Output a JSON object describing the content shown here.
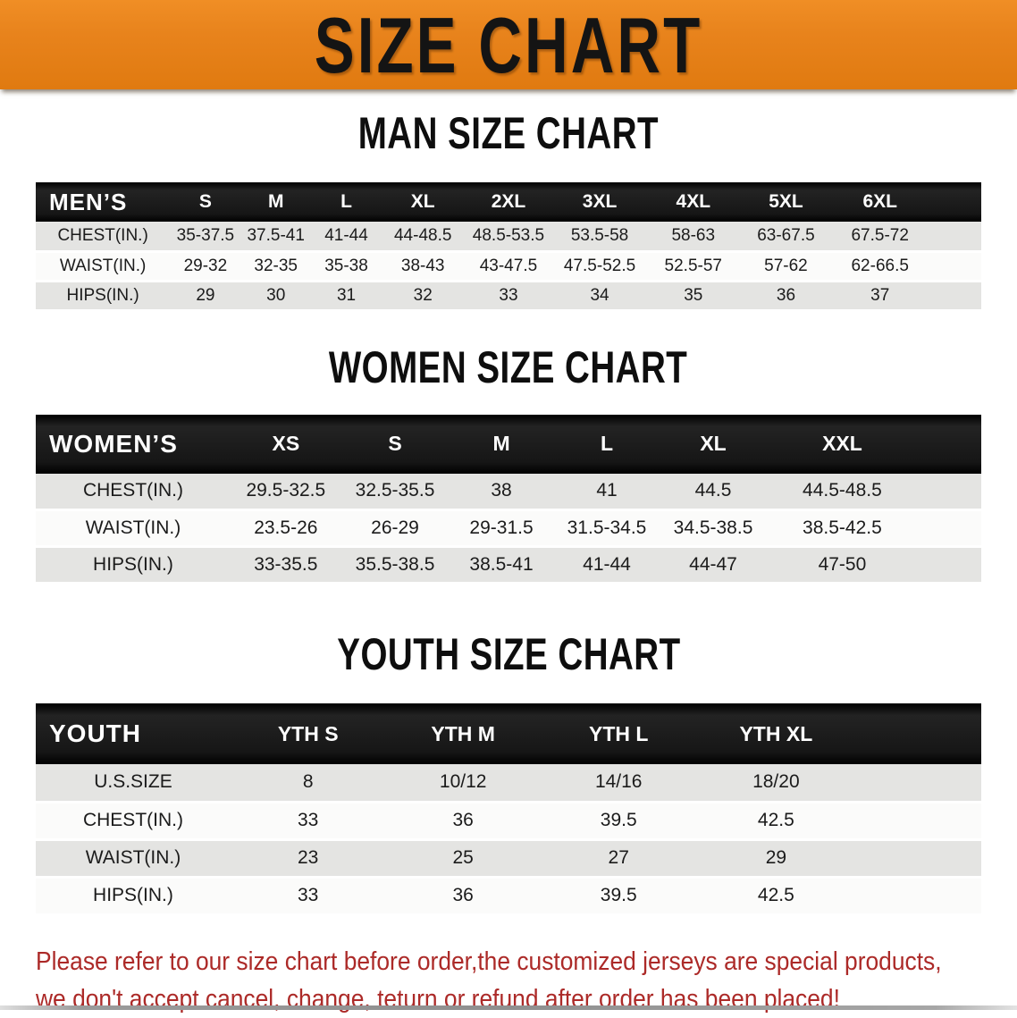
{
  "banner": {
    "title": "SIZE CHART"
  },
  "colors": {
    "banner_bg": "#E8831C",
    "header_bar_bg": "#161616",
    "row_stripe": "#E4E4E2",
    "footer_text": "#AC2A28"
  },
  "sections": [
    {
      "heading": "MAN SIZE CHART",
      "header_label": "MEN’S",
      "columns": [
        "S",
        "M",
        "L",
        "XL",
        "2XL",
        "3XL",
        "4XL",
        "5XL",
        "6XL"
      ],
      "rows": [
        {
          "label": "CHEST(IN.)",
          "values": [
            "35-37.5",
            "37.5-41",
            "41-44",
            "44-48.5",
            "48.5-53.5",
            "53.5-58",
            "58-63",
            "63-67.5",
            "67.5-72"
          ]
        },
        {
          "label": "WAIST(IN.)",
          "values": [
            "29-32",
            "32-35",
            "35-38",
            "38-43",
            "43-47.5",
            "47.5-52.5",
            "52.5-57",
            "57-62",
            "62-66.5"
          ]
        },
        {
          "label": "HIPS(IN.)",
          "values": [
            "29",
            "30",
            "31",
            "32",
            "33",
            "34",
            "35",
            "36",
            "37"
          ]
        }
      ]
    },
    {
      "heading": "WOMEN SIZE CHART",
      "header_label": "WOMEN’S",
      "columns": [
        "XS",
        "S",
        "M",
        "L",
        "XL",
        "XXL"
      ],
      "rows": [
        {
          "label": "CHEST(IN.)",
          "values": [
            "29.5-32.5",
            "32.5-35.5",
            "38",
            "41",
            "44.5",
            "44.5-48.5"
          ]
        },
        {
          "label": "WAIST(IN.)",
          "values": [
            "23.5-26",
            "26-29",
            "29-31.5",
            "31.5-34.5",
            "34.5-38.5",
            "38.5-42.5"
          ]
        },
        {
          "label": "HIPS(IN.)",
          "values": [
            "33-35.5",
            "35.5-38.5",
            "38.5-41",
            "41-44",
            "44-47",
            "47-50"
          ]
        }
      ]
    },
    {
      "heading": "YOUTH SIZE CHART",
      "header_label": "YOUTH",
      "columns": [
        "YTH S",
        "YTH M",
        "YTH L",
        "YTH XL"
      ],
      "rows": [
        {
          "label": "U.S.SIZE",
          "values": [
            "8",
            "10/12",
            "14/16",
            "18/20"
          ]
        },
        {
          "label": "CHEST(IN.)",
          "values": [
            "33",
            "36",
            "39.5",
            "42.5"
          ]
        },
        {
          "label": "WAIST(IN.)",
          "values": [
            "23",
            "25",
            "27",
            "29"
          ]
        },
        {
          "label": "HIPS(IN.)",
          "values": [
            "33",
            "36",
            "39.5",
            "42.5"
          ]
        }
      ]
    }
  ],
  "footer": {
    "line1": "Please refer to our size chart before order,the customized jerseys are special products,",
    "line2": "we don't accept cancel, change, teturn or refund after order has been placed!"
  }
}
